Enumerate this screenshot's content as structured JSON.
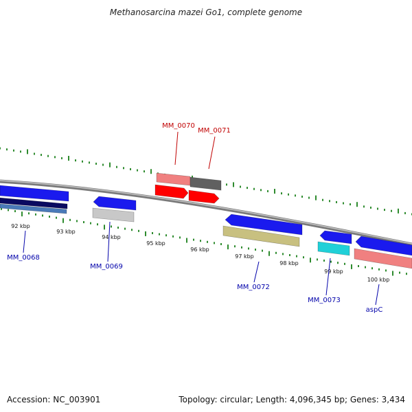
{
  "title": "Methanosarcina mazei Go1, complete genome",
  "footer": {
    "accession": "Accession: NC_003901",
    "summary": "Topology: circular; Length: 4,096,345 bp; Genes: 3,434"
  },
  "colors": {
    "backbone": "#8a8a8a",
    "tick": "#2e8b2e",
    "forward_label": "#c00000",
    "reverse_label": "#0000aa",
    "blue": "#1a1aee",
    "red": "#ff0000",
    "pink": "#f08080",
    "darkgray": "#606060",
    "lightgray": "#c8c8c8",
    "olive": "#c8c080",
    "cyan": "#20d0d8",
    "navy": "#0a0a60",
    "steelblue": "#4a7ab8"
  },
  "ticks": [
    {
      "label": "92 kbp"
    },
    {
      "label": "93 kbp"
    },
    {
      "label": "94 kbp"
    },
    {
      "label": "95 kbp"
    },
    {
      "label": "96 kbp"
    },
    {
      "label": "97 kbp"
    },
    {
      "label": "98 kbp"
    },
    {
      "label": "99 kbp"
    },
    {
      "label": "100 kbp"
    }
  ],
  "gene_labels": [
    {
      "text": "MM_0070",
      "strand": "forward"
    },
    {
      "text": "MM_0071",
      "strand": "forward"
    },
    {
      "text": "MM_0068",
      "strand": "reverse"
    },
    {
      "text": "MM_0069",
      "strand": "reverse"
    },
    {
      "text": "MM_0072",
      "strand": "reverse"
    },
    {
      "text": "MM_0073",
      "strand": "reverse"
    },
    {
      "text": "aspC",
      "strand": "reverse"
    }
  ]
}
